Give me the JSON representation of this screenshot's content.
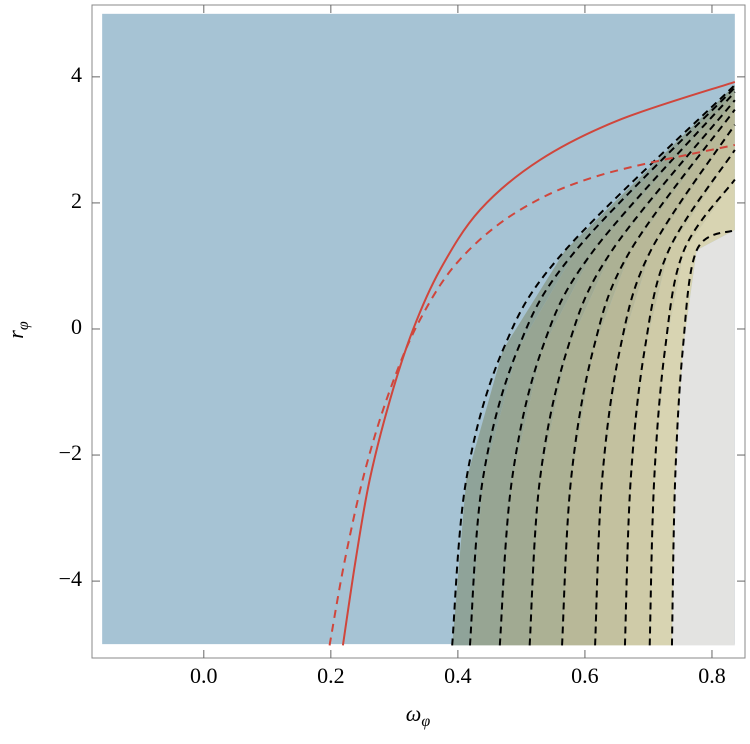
{
  "chart_data": {
    "type": "contour",
    "xlabel": "ω",
    "xlabel_sub": "φ",
    "ylabel": "r",
    "ylabel_sub": "φ",
    "xlim": [
      -0.176,
      0.852
    ],
    "ylim": [
      -5.22,
      5.14
    ],
    "xticks": [
      {
        "value": 0,
        "label": "0.0"
      },
      0.2,
      0.4,
      0.6,
      0.8
    ],
    "yticks": [
      {
        "value": -4,
        "label": "−4"
      },
      {
        "value": -2,
        "label": "−2"
      },
      0,
      2,
      4
    ],
    "region": {
      "x": [
        -0.16,
        0.836
      ],
      "y": [
        -5,
        5
      ],
      "color": "#a6c3d4"
    },
    "band_colors": [
      "#8fa399",
      "#97a593",
      "#a1aa92",
      "#acb194",
      "#b8b898",
      "#c3c19f",
      "#cfcba8",
      "#d8d4b2",
      "#e3e3e1"
    ],
    "contours": [
      {
        "x": [
          0.391,
          0.413,
          0.471,
          0.569,
          0.836
        ],
        "y": [
          -5.02,
          -2.4,
          -0.33,
          1.25,
          3.87
        ]
      },
      {
        "x": [
          0.419,
          0.439,
          0.494,
          0.586,
          0.836
        ],
        "y": [
          -5.02,
          -2.4,
          -0.33,
          1.25,
          3.83
        ]
      },
      {
        "x": [
          0.466,
          0.485,
          0.532,
          0.614,
          0.836
        ],
        "y": [
          -5.02,
          -2.4,
          -0.33,
          1.25,
          3.76
        ]
      },
      {
        "x": [
          0.513,
          0.529,
          0.572,
          0.643,
          0.836
        ],
        "y": [
          -5.02,
          -2.4,
          -0.33,
          1.25,
          3.63
        ]
      },
      {
        "x": [
          0.564,
          0.578,
          0.613,
          0.672,
          0.836
        ],
        "y": [
          -5.02,
          -2.4,
          -0.33,
          1.25,
          3.48
        ]
      },
      {
        "x": [
          0.616,
          0.627,
          0.655,
          0.704,
          0.836
        ],
        "y": [
          -5.02,
          -2.4,
          -0.33,
          1.25,
          3.24
        ]
      },
      {
        "x": [
          0.663,
          0.672,
          0.694,
          0.732,
          0.836
        ],
        "y": [
          -5.02,
          -2.4,
          -0.33,
          1.25,
          2.84
        ]
      },
      {
        "x": [
          0.702,
          0.709,
          0.726,
          0.756,
          0.836
        ],
        "y": [
          -5.02,
          -2.4,
          -0.33,
          1.25,
          2.37
        ]
      },
      {
        "x": [
          0.737,
          0.742,
          0.754,
          0.776,
          0.836
        ],
        "y": [
          -5.02,
          -2.4,
          -0.33,
          1.25,
          1.57
        ]
      }
    ],
    "contour_color": "#000000",
    "series": [
      {
        "color": "#d0463c",
        "dashed": false,
        "x": [
          0.219,
          0.239,
          0.261,
          0.293,
          0.329,
          0.372,
          0.435,
          0.529,
          0.655,
          0.836
        ],
        "y": [
          -5.02,
          -3.67,
          -2.4,
          -1.13,
          -0.02,
          0.94,
          1.89,
          2.68,
          3.32,
          3.92
        ]
      },
      {
        "color": "#d0463c",
        "dashed": true,
        "x": [
          0.198,
          0.222,
          0.254,
          0.293,
          0.34,
          0.403,
          0.498,
          0.624,
          0.836
        ],
        "y": [
          -5.02,
          -3.67,
          -2.24,
          -0.97,
          0.14,
          1.1,
          1.89,
          2.44,
          2.92
        ]
      }
    ]
  }
}
